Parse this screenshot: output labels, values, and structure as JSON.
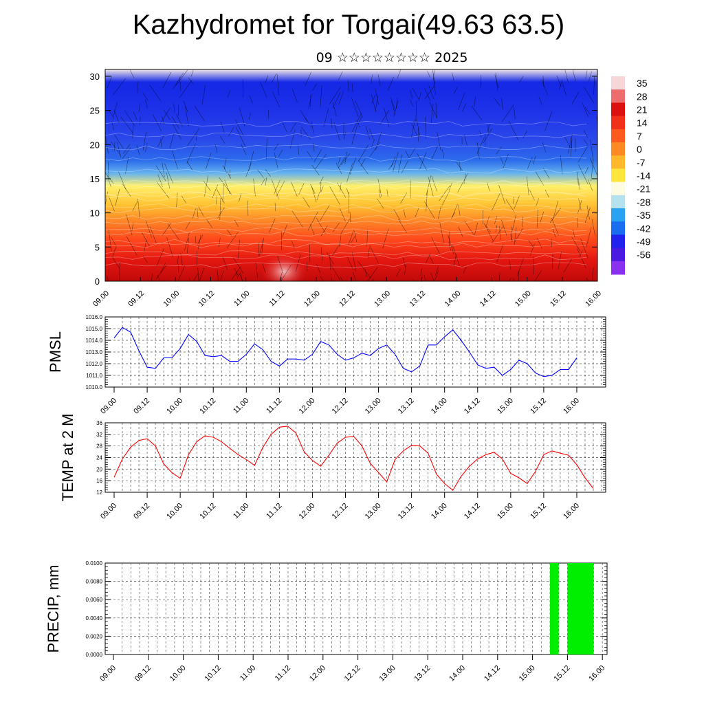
{
  "header": {
    "title": "Kazhydromet for Torgai(49.63 63.5)",
    "subtitle": "09 ☆☆☆☆☆☆☆☆ 2025"
  },
  "colors": {
    "pmsl_line": "#0000ff",
    "temp_line": "#ff0000",
    "precip_bar": "#00ee00",
    "grid": "#555555"
  },
  "chart_data": [
    {
      "type": "heatmap",
      "id": "cross-section",
      "x_tick_labels": [
        "09.00",
        "09.12",
        "10.00",
        "10.12",
        "11.00",
        "11.12",
        "12.00",
        "12.12",
        "13.00",
        "13.12",
        "14.00",
        "14.12",
        "15.00",
        "15.12",
        "16.00"
      ],
      "y_ticks": [
        0,
        5,
        10,
        15,
        20,
        25,
        30
      ],
      "ylim": [
        0,
        31
      ],
      "colorbar_labels": [
        "35",
        "28",
        "21",
        "14",
        "7",
        "0",
        "-7",
        "-14",
        "-21",
        "-28",
        "-35",
        "-42",
        "-49",
        "-56"
      ],
      "colorbar_colors": [
        "#f6d6d6",
        "#ed6d6d",
        "#dd1010",
        "#f03018",
        "#ff5a1e",
        "#ff8a24",
        "#ffb82c",
        "#ffe63c",
        "#fdfbe0",
        "#b6e2f0",
        "#2aa2f2",
        "#1a6cf0",
        "#2222ee",
        "#4a1ae2",
        "#8a30f0"
      ],
      "background_gradient": [
        "#f2e6e6",
        "#1428e6",
        "#1e32e8",
        "#2a48ea",
        "#2c6cec",
        "#66b2ee",
        "#fff06a",
        "#ffc232",
        "#ff8a28",
        "#ff4a1c",
        "#e41610",
        "#c00a0a"
      ]
    },
    {
      "type": "line",
      "id": "pmsl",
      "ylabel": "PMSL",
      "ylim": [
        1010,
        1016
      ],
      "y_ticks": [
        "1010.0",
        "1011.0",
        "1012.0",
        "1013.0",
        "1014.0",
        "1015.0",
        "1016.0"
      ],
      "x_tick_labels": [
        "09.00",
        "09.12",
        "10.00",
        "10.12",
        "11.00",
        "11.12",
        "12.00",
        "12.12",
        "13.00",
        "13.12",
        "14.00",
        "14.12",
        "15.00",
        "15.12",
        "16.00"
      ],
      "x_step_hours": 3,
      "series": [
        {
          "values": [
            1014.2,
            1015.1,
            1014.7,
            1013.1,
            1011.7,
            1011.6,
            1012.5,
            1012.5,
            1013.3,
            1014.5,
            1013.9,
            1012.7,
            1012.6,
            1012.7,
            1012.2,
            1012.2,
            1012.8,
            1013.7,
            1013.2,
            1012.2,
            1011.8,
            1012.4,
            1012.4,
            1012.3,
            1012.8,
            1013.9,
            1013.6,
            1012.8,
            1012.3,
            1012.5,
            1012.9,
            1012.7,
            1013.3,
            1013.6,
            1012.8,
            1011.6,
            1011.3,
            1011.8,
            1013.6,
            1013.6,
            1014.3,
            1014.9,
            1014.0,
            1013.0,
            1011.9,
            1011.6,
            1011.7,
            1011.0,
            1011.5,
            1012.3,
            1012.0,
            1011.2,
            1010.9,
            1011.0,
            1011.5,
            1011.5,
            1012.5
          ]
        }
      ]
    },
    {
      "type": "line",
      "id": "temp",
      "ylabel": "TEMP at 2 M",
      "ylim": [
        12,
        36
      ],
      "y_ticks": [
        "12",
        "16",
        "20",
        "24",
        "28",
        "32",
        "36"
      ],
      "x_tick_labels": [
        "09.00",
        "09.12",
        "10.00",
        "10.12",
        "11.00",
        "11.12",
        "12.00",
        "12.12",
        "13.00",
        "13.12",
        "14.00",
        "14.12",
        "15.00",
        "15.12",
        "16.00"
      ],
      "x_step_hours": 3,
      "series": [
        {
          "values": [
            17.2,
            23.5,
            27.6,
            29.9,
            30.5,
            28.0,
            21.8,
            18.8,
            16.8,
            25.0,
            29.5,
            31.5,
            31.0,
            29.5,
            27.2,
            25.0,
            23.3,
            21.3,
            27.5,
            32.0,
            34.5,
            34.8,
            32.5,
            26.0,
            23.0,
            21.0,
            24.8,
            29.0,
            31.0,
            31.3,
            28.0,
            22.0,
            18.8,
            15.6,
            23.3,
            26.3,
            28.2,
            28.0,
            25.5,
            18.3,
            15.0,
            12.7,
            17.5,
            21.0,
            23.5,
            25.0,
            25.8,
            23.5,
            18.5,
            17.0,
            15.0,
            19.2,
            25.0,
            26.3,
            25.5,
            24.8,
            21.5,
            17.0,
            13.3
          ]
        }
      ]
    },
    {
      "type": "bar",
      "id": "precip",
      "ylabel": "PRECIP, mm",
      "ylim": [
        0,
        0.01
      ],
      "y_ticks": [
        "0.0000",
        "0.0020",
        "0.0040",
        "0.0060",
        "0.0080",
        "0.0100"
      ],
      "x_tick_labels": [
        "09.00",
        "09.12",
        "10.00",
        "10.12",
        "11.00",
        "11.12",
        "12.00",
        "12.12",
        "13.00",
        "13.12",
        "14.00",
        "14.12",
        "15.00",
        "15.12",
        "16.00"
      ],
      "bars": [
        {
          "start_hours": 150,
          "end_hours": 153,
          "value": 0.01
        },
        {
          "start_hours": 156,
          "end_hours": 165,
          "value": 0.01
        }
      ]
    }
  ]
}
